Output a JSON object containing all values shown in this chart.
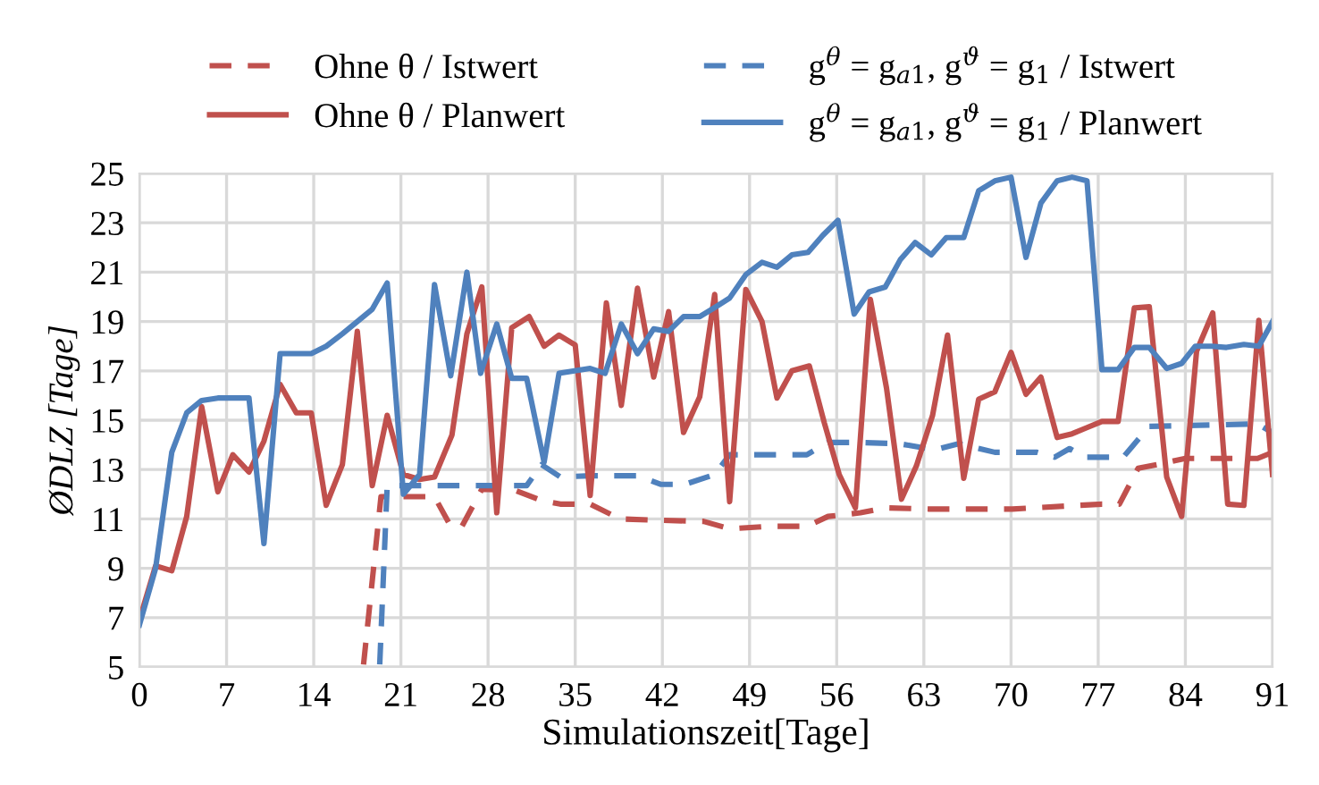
{
  "chart_data": {
    "type": "line",
    "xlabel": "Simulationszeit[Tage]",
    "ylabel": "ØDLZ [Tage]",
    "xlim": [
      0,
      91
    ],
    "xticks": [
      0,
      7,
      14,
      21,
      28,
      35,
      42,
      49,
      56,
      63,
      70,
      77,
      84,
      91
    ],
    "ylim": [
      5,
      25
    ],
    "yticks": [
      5,
      7,
      9,
      11,
      13,
      15,
      17,
      19,
      21,
      23,
      25
    ],
    "grid": true,
    "legend": "top",
    "line_style": "solid",
    "marker": "none",
    "series": [
      {
        "name": "Ohne θ / Istwert",
        "color": "#c0504d",
        "line_style": "dashed",
        "x": [
          18,
          19.4,
          23.7,
          25,
          25.9,
          27.5,
          30.2,
          32.3,
          33.8,
          36.2,
          38.6,
          41.4,
          45.3,
          47.4,
          50.5,
          53.6,
          55.3,
          57.9,
          59.9,
          63.4,
          70.1,
          77.3,
          78.7,
          80.2,
          81.7,
          84,
          89.8,
          91
        ],
        "values": [
          5.1,
          11.9,
          11.9,
          10.7,
          10.7,
          12.2,
          12.15,
          11.75,
          11.6,
          11.6,
          11,
          10.95,
          10.9,
          10.6,
          10.7,
          10.7,
          11.1,
          11.25,
          11.45,
          11.4,
          11.4,
          11.6,
          11.6,
          13.05,
          13.2,
          13.45,
          13.45,
          13.7
        ]
      },
      {
        "name": "g$^{θ}$ = g$_{a1}$, g$^{ϑ}$ = g$_{1}$ / Istwert",
        "color": "#4f81bd",
        "line_style": "dashed",
        "x": [
          19.3,
          19.9,
          31.1,
          32.3,
          33.8,
          36.2,
          40,
          41.9,
          43.8,
          46.2,
          47.4,
          53.6,
          55.3,
          57.7,
          61,
          63.9,
          65.8,
          68.7,
          72.1,
          73.5,
          74.7,
          75.9,
          79,
          81.1,
          89.8,
          91
        ],
        "values": [
          5.1,
          12.35,
          12.35,
          13.2,
          12.7,
          12.75,
          12.75,
          12.4,
          12.4,
          12.8,
          13.6,
          13.6,
          14.1,
          14.1,
          14.05,
          13.8,
          14.05,
          13.7,
          13.7,
          13.5,
          13.85,
          13.5,
          13.5,
          14.75,
          14.85,
          14.5
        ]
      },
      {
        "name": "Ohne θ / Planwert",
        "color": "#c0504d",
        "x": [
          0,
          1.3,
          2.6,
          3.8,
          5,
          6.3,
          7.5,
          8.8,
          10,
          11.3,
          12.6,
          13.8,
          15,
          16.3,
          17.5,
          18.7,
          19.9,
          21.2,
          22.5,
          23.7,
          25.1,
          26.3,
          27.5,
          28.7,
          29.9,
          31.3,
          32.5,
          33.7,
          35,
          36.2,
          37.5,
          38.7,
          40,
          41.3,
          42.5,
          43.7,
          45,
          46.2,
          47.4,
          48.7,
          50,
          51.2,
          52.4,
          53.8,
          55,
          56.2,
          57.5,
          58.7,
          60,
          61.2,
          62.4,
          63.7,
          64.9,
          66.2,
          67.4,
          68.7,
          70,
          71.2,
          72.4,
          73.7,
          74.9,
          76.1,
          77.3,
          78.6,
          79.9,
          81.1,
          82.5,
          83.7,
          84.9,
          86.2,
          87.4,
          88.7,
          89.9,
          91
        ],
        "values": [
          6.9,
          9.1,
          8.9,
          11.1,
          15.55,
          12.1,
          13.6,
          12.9,
          14.15,
          16.45,
          15.3,
          15.3,
          11.55,
          13.2,
          18.6,
          12.35,
          15.2,
          12.8,
          12.6,
          12.7,
          14.4,
          18.5,
          20.4,
          11.25,
          18.75,
          19.2,
          18,
          18.45,
          18.05,
          11.95,
          19.75,
          15.6,
          20.35,
          16.75,
          19.4,
          14.5,
          15.95,
          20.1,
          11.7,
          20.3,
          19,
          15.9,
          17,
          17.2,
          14.9,
          12.8,
          11.45,
          19.9,
          16.3,
          11.8,
          13.15,
          15.2,
          18.45,
          12.65,
          15.85,
          16.15,
          17.75,
          16.05,
          16.75,
          14.3,
          14.45,
          14.7,
          14.95,
          14.95,
          19.55,
          19.6,
          12.7,
          11.1,
          17.8,
          19.35,
          11.6,
          11.55,
          19.05,
          12.8
        ]
      },
      {
        "name": "g$^{θ}$ = g$_{a1}$, g$^{ϑ}$ = g$_{1}$ / Planwert",
        "color": "#4f81bd",
        "x": [
          0,
          1.3,
          2.6,
          3.8,
          5,
          6.3,
          7.5,
          8.8,
          10,
          11.3,
          13.8,
          15,
          16.3,
          17.5,
          18.7,
          19.9,
          21.2,
          22.5,
          23.7,
          25,
          26.3,
          27.4,
          28.7,
          29.9,
          31.1,
          32.5,
          33.7,
          36.2,
          37.4,
          38.7,
          40,
          41.3,
          42.5,
          43.7,
          45,
          46.3,
          47.4,
          48.7,
          50,
          51.2,
          52.4,
          53.7,
          54.9,
          56.1,
          57.4,
          58.6,
          59.9,
          61.1,
          62.3,
          63.6,
          64.8,
          66.2,
          67.4,
          68.7,
          70,
          71.2,
          72.4,
          73.7,
          74.9,
          76.1,
          77.3,
          78.6,
          79.9,
          81.1,
          82.5,
          83.7,
          84.8,
          86.1,
          87.3,
          88.7,
          89.9,
          91
        ],
        "values": [
          6.7,
          9,
          13.7,
          15.3,
          15.8,
          15.9,
          15.9,
          15.9,
          10,
          17.7,
          17.7,
          18,
          18.5,
          19,
          19.5,
          20.56,
          12,
          12.8,
          20.5,
          16.8,
          21,
          16.9,
          18.9,
          16.7,
          16.7,
          13.3,
          16.9,
          17.1,
          16.9,
          18.9,
          17.7,
          18.7,
          18.6,
          19.2,
          19.2,
          19.6,
          19.95,
          20.9,
          21.4,
          21.2,
          21.7,
          21.8,
          22.5,
          23.1,
          19.3,
          20.2,
          20.4,
          21.5,
          22.2,
          21.7,
          22.4,
          22.4,
          24.3,
          24.7,
          24.85,
          21.6,
          23.8,
          24.7,
          24.85,
          24.7,
          17.05,
          17.05,
          17.95,
          17.95,
          17.1,
          17.3,
          18,
          18,
          17.95,
          18.07,
          18,
          19
        ]
      }
    ]
  }
}
